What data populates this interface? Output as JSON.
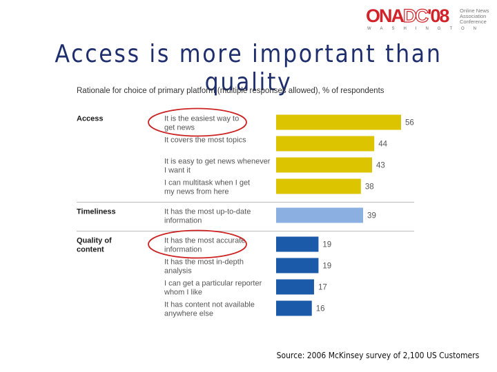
{
  "header": {
    "logo": {
      "ona": "ONA",
      "dc": "DC",
      "year": "'08",
      "side_lines": [
        "Online News",
        "Association",
        "Conference"
      ],
      "city": "WASHINGTON"
    },
    "title": "Access is more important than quality"
  },
  "chart_data": {
    "type": "bar",
    "orientation": "horizontal",
    "subtitle": "Rationale for choice of primary platform (multiple responses allowed), % of respondents",
    "groups": [
      {
        "name": "Access",
        "color": "#dcc400",
        "highlighted_item": 0,
        "items": [
          {
            "label": [
              "It is the easiest way to",
              "get news"
            ],
            "value": 56
          },
          {
            "label": [
              "It covers the most topics"
            ],
            "value": 44
          },
          {
            "label": [
              "It is easy to get news whenever",
              "I want it"
            ],
            "value": 43
          },
          {
            "label": [
              "I can multitask when I get",
              "my news from here"
            ],
            "value": 38
          }
        ]
      },
      {
        "name": "Timeliness",
        "color": "#8aafe0",
        "items": [
          {
            "label": [
              "It has the most up-to-date",
              "information"
            ],
            "value": 39
          }
        ]
      },
      {
        "name": [
          "Quality of",
          "content"
        ],
        "color": "#1a5aa8",
        "highlighted_item": 0,
        "items": [
          {
            "label": [
              "It has the most accurate",
              "information"
            ],
            "value": 19
          },
          {
            "label": [
              "It has the most in-depth",
              "analysis"
            ],
            "value": 19
          },
          {
            "label": [
              "I can get a particular reporter",
              "whom I like"
            ],
            "value": 17
          },
          {
            "label": [
              "It has content not available",
              "anywhere else"
            ],
            "value": 16
          }
        ]
      }
    ],
    "highlight_color": "#cc2222",
    "value_label_color": "#555555",
    "xlim": [
      0,
      56
    ]
  },
  "source": "Source: 2006 McKinsey survey of 2,100 US Customers"
}
